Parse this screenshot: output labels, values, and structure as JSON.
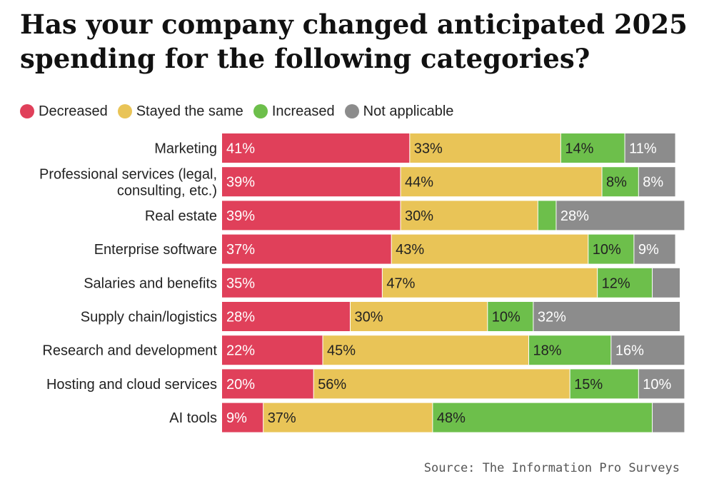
{
  "title": "Has your company changed anticipated 2025 spending for the following categories?",
  "source": "Source: The Information Pro Surveys",
  "chart_data": {
    "type": "bar",
    "orientation": "horizontal",
    "stacked": true,
    "unit": "%",
    "xlim": [
      0,
      100
    ],
    "legend_position": "top-left",
    "categories": [
      [
        "Marketing"
      ],
      [
        "Professional services (legal,",
        "consulting, etc.)"
      ],
      [
        "Real estate"
      ],
      [
        "Enterprise software"
      ],
      [
        "Salaries and benefits"
      ],
      [
        "Supply chain/logistics"
      ],
      [
        "Research and development"
      ],
      [
        "Hosting and cloud services"
      ],
      [
        "AI tools"
      ]
    ],
    "series": [
      {
        "name": "Decreased",
        "color": "#e0405a",
        "values": [
          41,
          39,
          39,
          37,
          35,
          28,
          22,
          20,
          9
        ],
        "labels": [
          "41%",
          "39%",
          "39%",
          "37%",
          "35%",
          "28%",
          "22%",
          "20%",
          "9%"
        ]
      },
      {
        "name": "Stayed the same",
        "color": "#e9c457",
        "values": [
          33,
          44,
          30,
          43,
          47,
          30,
          45,
          56,
          37
        ],
        "labels": [
          "33%",
          "44%",
          "30%",
          "43%",
          "47%",
          "30%",
          "45%",
          "56%",
          "37%"
        ]
      },
      {
        "name": "Increased",
        "color": "#6dbf4b",
        "values": [
          14,
          8,
          4,
          10,
          12,
          10,
          18,
          15,
          48
        ],
        "labels": [
          "14%",
          "8%",
          "",
          "10%",
          "12%",
          "10%",
          "18%",
          "15%",
          "48%"
        ]
      },
      {
        "name": "Not applicable",
        "color": "#8c8c8c",
        "values": [
          11,
          8,
          28,
          9,
          6,
          32,
          16,
          10,
          7
        ],
        "labels": [
          "11%",
          "8%",
          "28%",
          "9%",
          "",
          "32%",
          "16%",
          "10%",
          ""
        ]
      }
    ]
  }
}
